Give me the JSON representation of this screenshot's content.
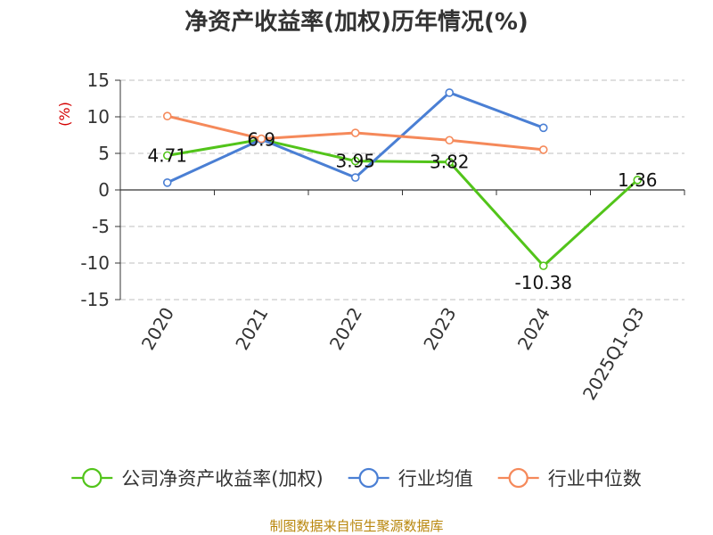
{
  "chart_data": {
    "type": "line",
    "title": "净资产收益率(加权)历年情况(%)",
    "ylabel": "(%)",
    "categories": [
      "2020",
      "2021",
      "2022",
      "2023",
      "2024",
      "2025Q1-Q3"
    ],
    "yticks": [
      "15",
      "10",
      "5",
      "0",
      "-5",
      "-10",
      "-15"
    ],
    "ylim": [
      -15,
      15
    ],
    "grid": true,
    "legend_position": "bottom",
    "series": [
      {
        "name": "公司净资产收益率(加权)",
        "color": "#52c41a",
        "values": [
          4.71,
          6.9,
          3.95,
          3.82,
          -10.38,
          1.36
        ],
        "labels": [
          "4.71",
          "6.9",
          "3.95",
          "3.82",
          "-10.38",
          "1.36"
        ]
      },
      {
        "name": "行业均值",
        "color": "#4a7fd4",
        "values": [
          1.0,
          6.9,
          1.7,
          13.3,
          8.5,
          null
        ]
      },
      {
        "name": "行业中位数",
        "color": "#f5895a",
        "values": [
          10.1,
          7.0,
          7.8,
          6.8,
          5.5,
          null
        ]
      }
    ]
  },
  "source": "制图数据来自恒生聚源数据库"
}
